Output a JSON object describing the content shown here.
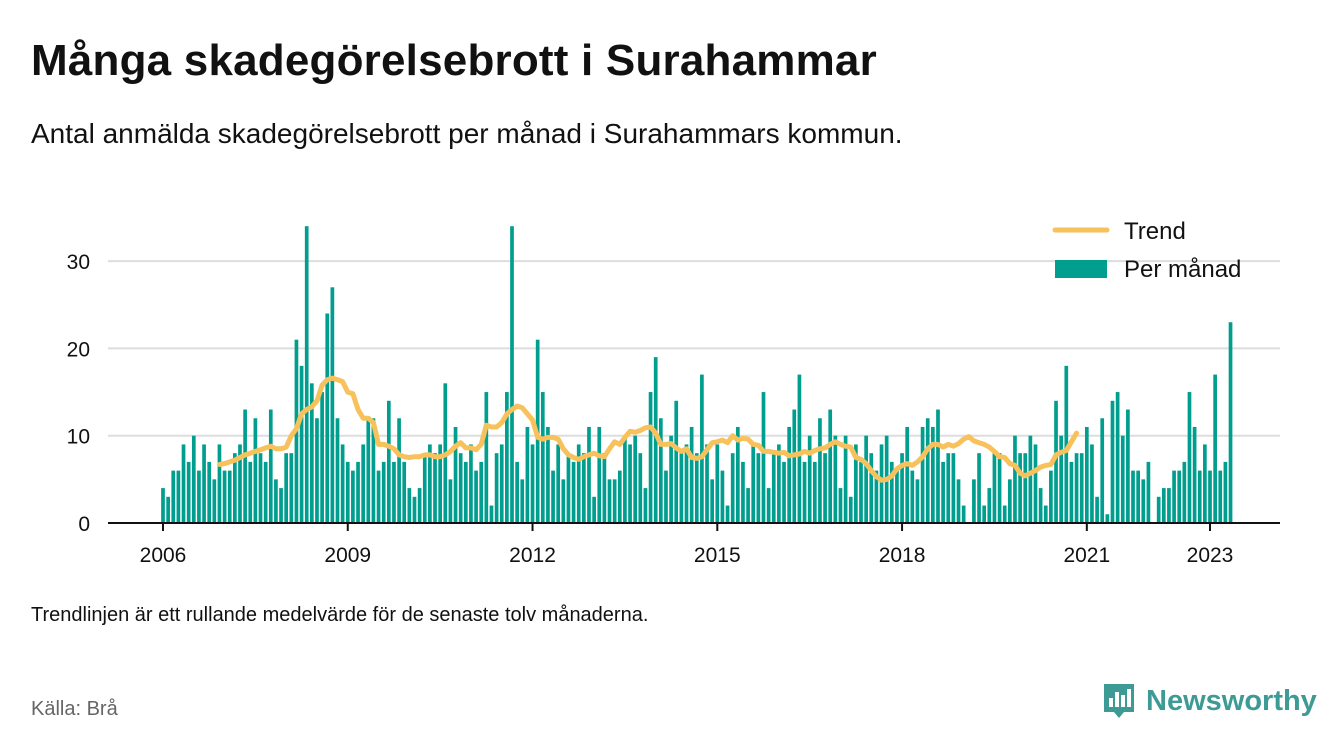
{
  "title": "Många skadegörelsebrott i Surahammar",
  "subtitle": "Antal anmälda skadegörelsebrott per månad i Surahammars kommun.",
  "note": "Trendlinjen är ett rullande medelvärde för de senaste tolv månaderna.",
  "source": "Källa: Brå",
  "brand": "Newsworthy",
  "colors": {
    "bars": "#009e8e",
    "trend": "#f7c15c",
    "grid": "#dddddd",
    "axis": "#111111",
    "brand": "#3d9a94"
  },
  "chart_data": {
    "type": "bar",
    "x_start": "2006-01",
    "x_end": "2023-04",
    "x_ticks": [
      "2006",
      "2009",
      "2012",
      "2015",
      "2018",
      "2021",
      "2023"
    ],
    "y_ticks": [
      "0",
      "10",
      "20",
      "30"
    ],
    "ylim": [
      0,
      37
    ],
    "grid": true,
    "legend": {
      "position": "top-right",
      "entries": [
        "Trend",
        "Per månad"
      ]
    },
    "series": [
      {
        "name": "Per månad",
        "type": "bar",
        "values": [
          4,
          3,
          6,
          6,
          9,
          7,
          10,
          6,
          9,
          7,
          5,
          9,
          6,
          6,
          8,
          9,
          13,
          7,
          12,
          8,
          7,
          13,
          5,
          4,
          8,
          8,
          21,
          18,
          34,
          16,
          12,
          15,
          24,
          27,
          12,
          9,
          7,
          6,
          7,
          9,
          12,
          12,
          6,
          7,
          14,
          7,
          12,
          7,
          4,
          3,
          4,
          8,
          9,
          8,
          9,
          16,
          5,
          11,
          8,
          7,
          9,
          6,
          7,
          15,
          2,
          8,
          9,
          15,
          34,
          7,
          5,
          11,
          9,
          21,
          15,
          11,
          6,
          9,
          5,
          8,
          7,
          9,
          8,
          11,
          3,
          11,
          8,
          5,
          5,
          6,
          10,
          9,
          10,
          8,
          4,
          15,
          19,
          12,
          6,
          10,
          14,
          8,
          9,
          11,
          8,
          17,
          9,
          5,
          9,
          6,
          2,
          8,
          11,
          7,
          4,
          9,
          8,
          15,
          4,
          8,
          9,
          7,
          11,
          13,
          17,
          7,
          10,
          7,
          12,
          8,
          13,
          10,
          4,
          10,
          3,
          9,
          7,
          10,
          8,
          6,
          9,
          10,
          7,
          6,
          8,
          11,
          6,
          5,
          11,
          12,
          11,
          13,
          7,
          8,
          8,
          5,
          2,
          0,
          5,
          8,
          2,
          4,
          8,
          8,
          2,
          5,
          10,
          8,
          8,
          10,
          9,
          4,
          2,
          6,
          14,
          10,
          18,
          7,
          8,
          8,
          11,
          9,
          3,
          12,
          1,
          14,
          15,
          10,
          13,
          6,
          6,
          5,
          7,
          0,
          3,
          4,
          4,
          6,
          6,
          7,
          15,
          11,
          6,
          9,
          6,
          17,
          6,
          7,
          23
        ]
      },
      {
        "name": "Trend",
        "type": "line",
        "start": "2006-12",
        "values": [
          6.7,
          6.8,
          7.0,
          7.2,
          7.5,
          7.8,
          8.0,
          8.2,
          8.4,
          8.6,
          8.8,
          8.5,
          8.5,
          8.7,
          10.0,
          10.8,
          12.5,
          13.0,
          13.3,
          14.0,
          15.8,
          16.4,
          16.6,
          16.4,
          16.2,
          15.0,
          14.8,
          13.0,
          12.0,
          12.0,
          11.5,
          9.0,
          9.0,
          8.8,
          8.5,
          7.8,
          7.6,
          7.5,
          7.6,
          7.6,
          7.8,
          7.8,
          7.6,
          7.6,
          7.8,
          8.2,
          8.8,
          9.2,
          8.6,
          8.6,
          8.4,
          9.0,
          11.2,
          11.0,
          11.0,
          11.5,
          12.5,
          13.0,
          13.4,
          13.2,
          12.5,
          11.8,
          9.8,
          9.6,
          9.8,
          9.8,
          9.6,
          8.5,
          7.8,
          7.5,
          7.3,
          7.6,
          7.8,
          8.0,
          7.7,
          7.6,
          8.5,
          9.3,
          9.0,
          9.8,
          10.5,
          10.4,
          10.6,
          10.9,
          11.0,
          10.3,
          9.0,
          9.0,
          9.1,
          8.6,
          8.2,
          8.5,
          7.5,
          7.4,
          7.6,
          8.4,
          9.2,
          9.3,
          9.5,
          9.2,
          10.0,
          9.5,
          9.7,
          9.6,
          9.0,
          8.9,
          8.2,
          8.2,
          8.1,
          8.0,
          8.1,
          7.7,
          7.8,
          7.9,
          8.2,
          8.0,
          8.3,
          8.5,
          8.6,
          9.0,
          9.3,
          9.0,
          8.8,
          8.7,
          7.5,
          7.3,
          6.8,
          6.0,
          5.3,
          4.9,
          5.0,
          5.4,
          6.2,
          6.6,
          6.8,
          6.6,
          7.0,
          7.6,
          8.5,
          9.0,
          9.0,
          8.7,
          9.0,
          8.8,
          9.1,
          9.6,
          9.9,
          9.4,
          9.2,
          9.0,
          8.7,
          8.2,
          7.6,
          7.5,
          6.8,
          6.6,
          5.7,
          5.4,
          5.7,
          6.0,
          6.4,
          6.6,
          6.7,
          7.8,
          8.1,
          8.3,
          9.3,
          10.3
        ]
      }
    ]
  }
}
